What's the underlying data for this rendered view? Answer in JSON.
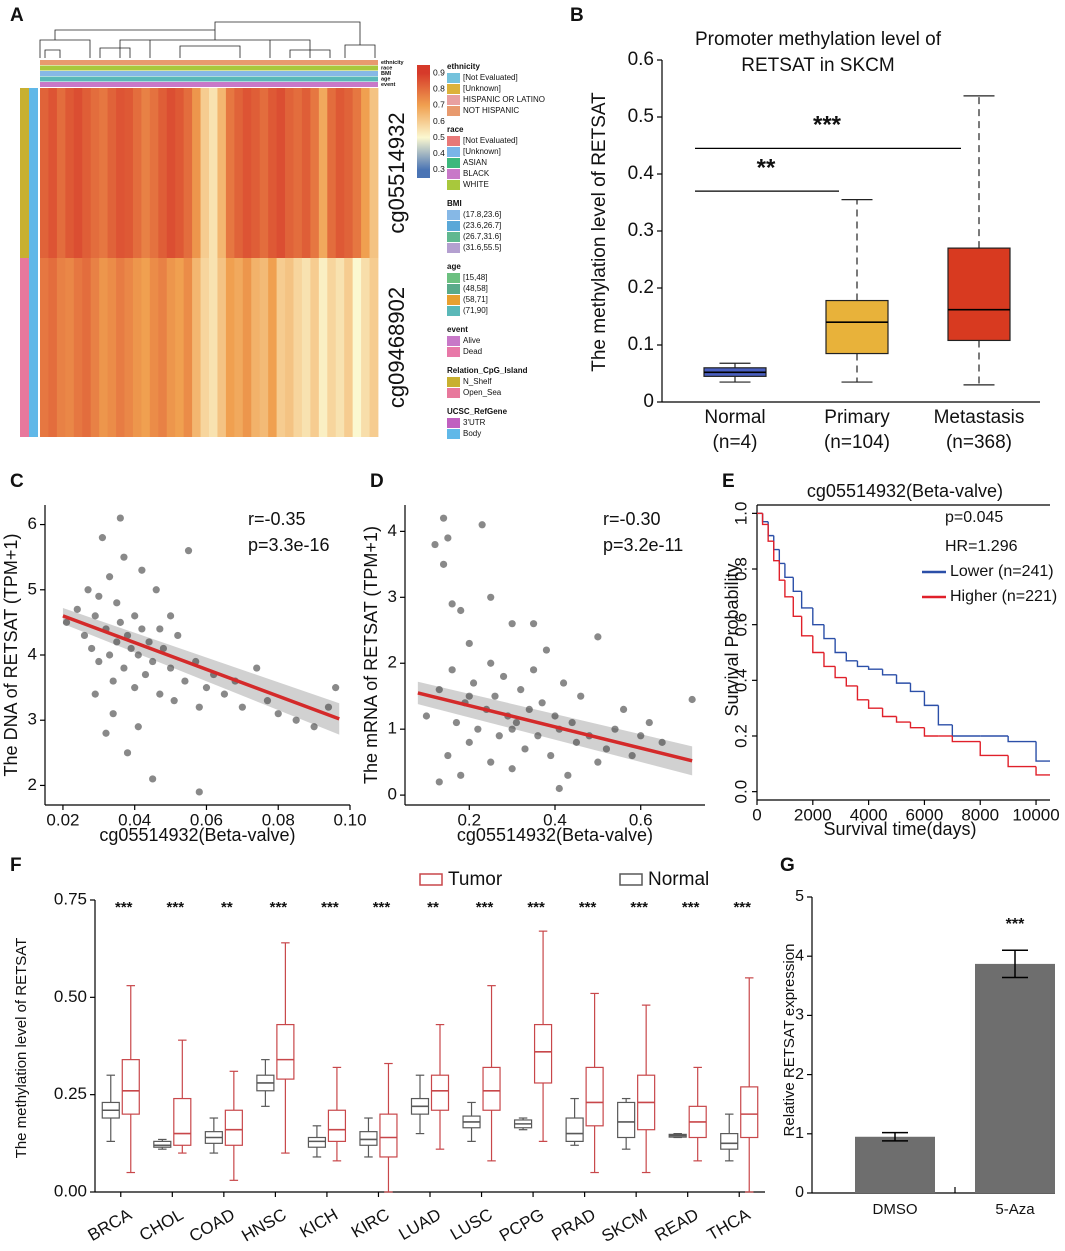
{
  "chart_data": [
    {
      "type": "heatmap",
      "panel": "A",
      "rows": [
        "cg05514932",
        "cg09468902"
      ],
      "values": [
        [
          0.82,
          0.85,
          0.8,
          0.84,
          0.86,
          0.83,
          0.8,
          0.78,
          0.82,
          0.85,
          0.84,
          0.8,
          0.76,
          0.79,
          0.83,
          0.86,
          0.84,
          0.8,
          0.72,
          0.6,
          0.55,
          0.65,
          0.78,
          0.82,
          0.85,
          0.83,
          0.8,
          0.84,
          0.86,
          0.82,
          0.8,
          0.83,
          0.78,
          0.68,
          0.8,
          0.84,
          0.82,
          0.78,
          0.7,
          0.62
        ],
        [
          0.78,
          0.8,
          0.76,
          0.75,
          0.78,
          0.8,
          0.76,
          0.72,
          0.74,
          0.77,
          0.75,
          0.72,
          0.7,
          0.74,
          0.76,
          0.72,
          0.7,
          0.74,
          0.65,
          0.58,
          0.55,
          0.62,
          0.7,
          0.68,
          0.72,
          0.66,
          0.64,
          0.7,
          0.6,
          0.62,
          0.58,
          0.55,
          0.6,
          0.52,
          0.58,
          0.55,
          0.6,
          0.5,
          0.56,
          0.6
        ]
      ],
      "zlim": [
        0.25,
        0.95
      ],
      "zticks": [
        0.3,
        0.4,
        0.5,
        0.6,
        0.7,
        0.8,
        0.9
      ],
      "colorscale": [
        [
          0.3,
          "#4a74b4"
        ],
        [
          0.5,
          "#fbf8d0"
        ],
        [
          0.7,
          "#f0a050"
        ],
        [
          0.9,
          "#d63a2a"
        ]
      ],
      "legend": [
        {
          "title": "ethnicity",
          "items": [
            {
              "name": "[Not Evaluated]",
              "color": "#74c2dc"
            },
            {
              "name": "[Unknown]",
              "color": "#dcb23a"
            },
            {
              "name": "HISPANIC OR LATINO",
              "color": "#e8a0a0"
            },
            {
              "name": "NOT HISPANIC",
              "color": "#e89a6e"
            }
          ]
        },
        {
          "title": "race",
          "items": [
            {
              "name": "[Not Evaluated]",
              "color": "#e87878"
            },
            {
              "name": "[Unknown]",
              "color": "#7ab4e8"
            },
            {
              "name": "ASIAN",
              "color": "#3cb87c"
            },
            {
              "name": "BLACK",
              "color": "#c878c8"
            },
            {
              "name": "WHITE",
              "color": "#a8c83c"
            }
          ]
        },
        {
          "title": "BMI",
          "items": [
            {
              "name": "(17.8,23.6]",
              "color": "#86b8e6"
            },
            {
              "name": "(23.6,26.7]",
              "color": "#5aa8d8"
            },
            {
              "name": "(26.7,31.6]",
              "color": "#60b890"
            },
            {
              "name": "(31.6,55.5]",
              "color": "#b4a0d0"
            }
          ]
        },
        {
          "title": "age",
          "items": [
            {
              "name": "[15,48]",
              "color": "#6cc080"
            },
            {
              "name": "(48,58]",
              "color": "#5aaa8a"
            },
            {
              "name": "(58,71]",
              "color": "#e8a030"
            },
            {
              "name": "(71,90]",
              "color": "#5ab8b8"
            }
          ]
        },
        {
          "title": "event",
          "items": [
            {
              "name": "Alive",
              "color": "#c878c8"
            },
            {
              "name": "Dead",
              "color": "#e878a8"
            }
          ]
        },
        {
          "title": "Relation_CpG_Island",
          "items": [
            {
              "name": "N_Shelf",
              "color": "#c8b030"
            },
            {
              "name": "Open_Sea",
              "color": "#e8789c"
            }
          ]
        },
        {
          "title": "UCSC_RefGene",
          "items": [
            {
              "name": "3'UTR",
              "color": "#c060c0"
            },
            {
              "name": "Body",
              "color": "#60b8e8"
            }
          ]
        }
      ]
    },
    {
      "type": "box",
      "panel": "B",
      "title": [
        "Promoter methylation level of",
        "RETSAT in SKCM"
      ],
      "ylabel": "The methylation level of RETSAT",
      "categories": [
        "Normal",
        "Primary",
        "Metastasis"
      ],
      "category_notes": [
        "(n=4)",
        "(n=104)",
        "(n=368)"
      ],
      "colors": [
        "#4a5fc0",
        "#e8b23a",
        "#d83a20"
      ],
      "values": [
        [
          0.035,
          0.045,
          0.052,
          0.06,
          0.068
        ],
        [
          0.035,
          0.085,
          0.14,
          0.178,
          0.355
        ],
        [
          0.03,
          0.108,
          0.162,
          0.27,
          0.537
        ]
      ],
      "ylim": [
        0,
        0.6
      ],
      "yticks": [
        0,
        0.1,
        0.2,
        0.3,
        0.4,
        0.5,
        0.6
      ],
      "annotations": [
        {
          "label": "**",
          "from": 0,
          "to": 1,
          "y": 0.37
        },
        {
          "label": "***",
          "from": 0,
          "to": 2,
          "y": 0.445
        }
      ]
    },
    {
      "type": "scatter",
      "panel": "C",
      "xlabel": "cg05514932(Beta-valve)",
      "ylabel": "The DNA of RETSAT (TPM+1)",
      "annotations": [
        "r=-0.35",
        "p=3.3e-16"
      ],
      "x": [
        0.021,
        0.024,
        0.026,
        0.027,
        0.028,
        0.029,
        0.03,
        0.03,
        0.031,
        0.032,
        0.033,
        0.033,
        0.034,
        0.035,
        0.035,
        0.036,
        0.037,
        0.037,
        0.038,
        0.039,
        0.04,
        0.04,
        0.041,
        0.042,
        0.043,
        0.044,
        0.045,
        0.046,
        0.047,
        0.048,
        0.05,
        0.051,
        0.052,
        0.054,
        0.055,
        0.057,
        0.058,
        0.06,
        0.062,
        0.065,
        0.068,
        0.07,
        0.074,
        0.077,
        0.08,
        0.085,
        0.09,
        0.094,
        0.096,
        0.045,
        0.038,
        0.036,
        0.042,
        0.058,
        0.032,
        0.029,
        0.05,
        0.041,
        0.034,
        0.047
      ],
      "y": [
        4.5,
        4.7,
        4.3,
        5.0,
        4.1,
        4.6,
        4.9,
        3.9,
        5.8,
        4.4,
        4.0,
        5.2,
        3.6,
        4.8,
        4.2,
        4.5,
        3.8,
        5.5,
        4.3,
        4.1,
        4.6,
        3.5,
        4.0,
        4.4,
        3.7,
        4.2,
        3.9,
        5.0,
        3.4,
        4.1,
        3.8,
        3.3,
        4.3,
        3.6,
        5.6,
        3.9,
        3.2,
        3.5,
        3.7,
        3.4,
        3.6,
        3.2,
        3.8,
        3.3,
        3.1,
        3.0,
        2.9,
        3.2,
        3.5,
        2.1,
        2.5,
        6.1,
        5.3,
        1.9,
        2.8,
        3.4,
        4.6,
        2.9,
        3.1,
        4.4
      ],
      "fit": {
        "x": [
          0.02,
          0.097
        ],
        "y": [
          4.6,
          3.02
        ],
        "lower": [
          4.48,
          2.78
        ],
        "upper": [
          4.72,
          3.26
        ],
        "color": "#d42a2a"
      },
      "xlim": [
        0.015,
        0.1
      ],
      "xticks": [
        0.02,
        0.04,
        0.06,
        0.08,
        {
          "value": 0.1,
          "label": "0.10"
        }
      ],
      "ylim": [
        1.7,
        6.3
      ],
      "yticks": [
        2,
        3,
        4,
        5,
        6
      ]
    },
    {
      "type": "scatter",
      "panel": "D",
      "xlabel": "cg05514932(Beta-valve)",
      "ylabel": "The mRNA of RETSAT (TPM+1)",
      "annotations": [
        "r=-0.30",
        "p=3.2e-11"
      ],
      "x": [
        0.1,
        0.12,
        0.13,
        0.14,
        0.15,
        0.15,
        0.16,
        0.17,
        0.18,
        0.18,
        0.19,
        0.2,
        0.2,
        0.21,
        0.22,
        0.23,
        0.24,
        0.25,
        0.25,
        0.26,
        0.27,
        0.28,
        0.29,
        0.3,
        0.3,
        0.31,
        0.32,
        0.33,
        0.34,
        0.35,
        0.36,
        0.37,
        0.38,
        0.39,
        0.4,
        0.41,
        0.42,
        0.43,
        0.44,
        0.45,
        0.46,
        0.48,
        0.5,
        0.52,
        0.54,
        0.56,
        0.58,
        0.6,
        0.62,
        0.65,
        0.72,
        0.14,
        0.16,
        0.13,
        0.25,
        0.35,
        0.41,
        0.2,
        0.3,
        0.5
      ],
      "y": [
        1.2,
        3.8,
        1.6,
        4.2,
        0.6,
        3.9,
        1.9,
        1.1,
        2.8,
        0.3,
        1.4,
        2.3,
        0.8,
        1.7,
        1.0,
        4.1,
        1.3,
        0.5,
        2.0,
        1.5,
        0.9,
        1.8,
        1.2,
        0.4,
        2.6,
        1.1,
        1.6,
        0.7,
        1.3,
        1.9,
        0.9,
        1.4,
        2.2,
        0.6,
        1.2,
        1.0,
        1.7,
        0.3,
        1.1,
        0.8,
        1.5,
        0.9,
        2.4,
        0.7,
        1.0,
        1.3,
        0.6,
        0.9,
        1.1,
        0.8,
        1.45,
        3.5,
        2.9,
        0.2,
        3.0,
        2.6,
        0.1,
        1.5,
        1.0,
        0.5
      ],
      "fit": {
        "x": [
          0.08,
          0.72
        ],
        "y": [
          1.55,
          0.52
        ],
        "lower": [
          1.38,
          0.3
        ],
        "upper": [
          1.72,
          0.74
        ],
        "color": "#d42a2a"
      },
      "xlim": [
        0.05,
        0.75
      ],
      "xticks": [
        0.2,
        0.4,
        0.6
      ],
      "ylim": [
        -0.15,
        4.4
      ],
      "yticks": [
        0,
        1,
        2,
        3,
        4
      ]
    },
    {
      "type": "line",
      "panel": "E",
      "title": "cg05514932(Beta-valve)",
      "xlabel": "Survival time(days)",
      "ylabel": "Survival Probability",
      "annotations": [
        "p=0.045",
        "HR=1.296"
      ],
      "series": [
        {
          "name": "Lower (n=241)",
          "color": "#2b4fa8",
          "x": [
            0,
            200,
            400,
            600,
            800,
            1000,
            1300,
            1600,
            2000,
            2400,
            2800,
            3200,
            3600,
            4000,
            4500,
            5000,
            5500,
            6000,
            6500,
            7000,
            8000,
            9000,
            10000,
            10500
          ],
          "values": [
            1,
            0.97,
            0.92,
            0.87,
            0.82,
            0.77,
            0.72,
            0.66,
            0.6,
            0.55,
            0.5,
            0.47,
            0.45,
            0.44,
            0.42,
            0.39,
            0.36,
            0.31,
            0.24,
            0.2,
            0.2,
            0.18,
            0.11,
            0.11
          ]
        },
        {
          "name": "Higher (n=221)",
          "color": "#e0202a",
          "x": [
            0,
            200,
            400,
            600,
            800,
            1000,
            1300,
            1600,
            2000,
            2400,
            2800,
            3200,
            3600,
            4000,
            4500,
            5000,
            5500,
            6000,
            6500,
            7000,
            8000,
            9000,
            10000,
            10500
          ],
          "values": [
            1,
            0.96,
            0.9,
            0.83,
            0.76,
            0.7,
            0.63,
            0.56,
            0.5,
            0.45,
            0.41,
            0.38,
            0.33,
            0.3,
            0.27,
            0.25,
            0.23,
            0.2,
            0.2,
            0.18,
            0.13,
            0.09,
            0.06,
            0.06
          ]
        }
      ],
      "xlim": [
        0,
        10500
      ],
      "xticks": [
        0,
        2000,
        4000,
        6000,
        8000,
        10000
      ],
      "ylim": [
        -0.03,
        1.03
      ],
      "yticks": [
        {
          "value": 0,
          "label": "0.0"
        },
        0.2,
        0.4,
        0.6,
        0.8,
        {
          "value": 1,
          "label": "1.0"
        }
      ]
    },
    {
      "type": "grouped_box",
      "panel": "F",
      "ylabel": "The methylation level of RETSAT",
      "categories": [
        "BRCA",
        "CHOL",
        "COAD",
        "HNSC",
        "KICH",
        "KIRC",
        "LUAD",
        "LUSC",
        "PCPG",
        "PRAD",
        "SKCM",
        "READ",
        "THCA"
      ],
      "significance": [
        "***",
        "***",
        "**",
        "***",
        "***",
        "***",
        "**",
        "***",
        "***",
        "***",
        "***",
        "***",
        "***"
      ],
      "series": [
        {
          "name": "Tumor",
          "color": "#c8474a",
          "values": [
            [
              0.05,
              0.2,
              0.26,
              0.34,
              0.53
            ],
            [
              0.1,
              0.12,
              0.15,
              0.24,
              0.39
            ],
            [
              0.03,
              0.12,
              0.16,
              0.21,
              0.31
            ],
            [
              0.1,
              0.29,
              0.34,
              0.43,
              0.64
            ],
            [
              0.08,
              0.13,
              0.16,
              0.21,
              0.32
            ],
            [
              0.0,
              0.09,
              0.14,
              0.2,
              0.33
            ],
            [
              0.11,
              0.21,
              0.26,
              0.3,
              0.43
            ],
            [
              0.08,
              0.21,
              0.26,
              0.32,
              0.53
            ],
            [
              0.13,
              0.28,
              0.36,
              0.43,
              0.67
            ],
            [
              0.05,
              0.17,
              0.23,
              0.32,
              0.51
            ],
            [
              0.05,
              0.16,
              0.23,
              0.3,
              0.48
            ],
            [
              0.08,
              0.14,
              0.18,
              0.22,
              0.32
            ],
            [
              0.0,
              0.14,
              0.2,
              0.27,
              0.55
            ]
          ]
        },
        {
          "name": "Normal",
          "color": "#595959",
          "values": [
            [
              0.13,
              0.19,
              0.21,
              0.23,
              0.3
            ],
            [
              0.11,
              0.115,
              0.12,
              0.13,
              0.135
            ],
            [
              0.1,
              0.125,
              0.14,
              0.155,
              0.19
            ],
            [
              0.22,
              0.26,
              0.28,
              0.3,
              0.34
            ],
            [
              0.09,
              0.115,
              0.13,
              0.14,
              0.17
            ],
            [
              0.09,
              0.12,
              0.135,
              0.155,
              0.19
            ],
            [
              0.15,
              0.2,
              0.22,
              0.24,
              0.3
            ],
            [
              0.13,
              0.165,
              0.18,
              0.195,
              0.23
            ],
            [
              0.16,
              0.165,
              0.175,
              0.185,
              0.19
            ],
            [
              0.12,
              0.13,
              0.15,
              0.19,
              0.24
            ],
            [
              0.11,
              0.14,
              0.18,
              0.23,
              0.24
            ],
            [
              0.14,
              0.141,
              0.145,
              0.148,
              0.15
            ],
            [
              0.08,
              0.11,
              0.125,
              0.15,
              0.2
            ]
          ]
        }
      ],
      "ylim": [
        0,
        0.75
      ],
      "yticks": [
        {
          "value": 0,
          "label": "0.00"
        },
        0.25,
        {
          "value": 0.5,
          "label": "0.50"
        },
        0.75
      ]
    },
    {
      "type": "bar",
      "panel": "G",
      "ylabel": "Relative RETSAT expression",
      "categories": [
        "DMSO",
        "5-Aza"
      ],
      "values": [
        0.95,
        3.87
      ],
      "errors": [
        0.07,
        0.23
      ],
      "annotations": [
        "***"
      ],
      "color": "#6e6e6e",
      "ylim": [
        0,
        5
      ],
      "yticks": [
        0,
        1,
        2,
        3,
        4,
        5
      ]
    }
  ]
}
